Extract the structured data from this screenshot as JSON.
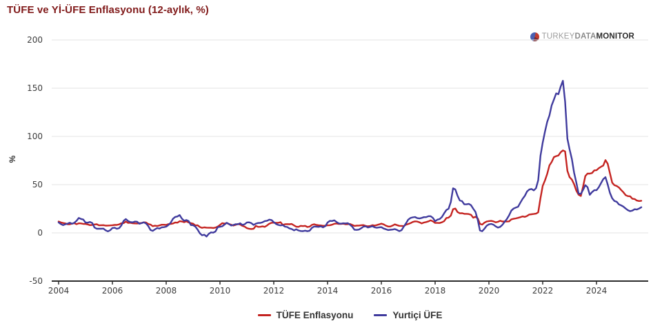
{
  "page": {
    "title": "TÜFE ve Yİ-ÜFE Enflasyonu (12-aylık, %)"
  },
  "logo": {
    "part1": "TURKEY",
    "part2": "DATA",
    "part3": "MONITOR",
    "icon": "pie-globe-icon"
  },
  "colors": {
    "title": "#801919",
    "tufe_line": "#c42320",
    "ufe_line": "#3f3a9d",
    "gridline": "#e3e3e3",
    "axis_line": "#2b2b2b",
    "tick_text": "#3c3c3c",
    "legend_text": "#333333",
    "background": "#ffffff"
  },
  "chart_data": {
    "type": "line",
    "title": "TÜFE ve Yİ-ÜFE Enflasyonu (12-aylık, %)",
    "xlabel": "",
    "ylabel": "%",
    "ylim": [
      -50,
      200
    ],
    "y_ticks": [
      -50,
      0,
      50,
      100,
      150,
      200
    ],
    "x_ticks": [
      2004,
      2006,
      2008,
      2010,
      2012,
      2014,
      2016,
      2018,
      2020,
      2022,
      2024
    ],
    "x_start_year": 2004,
    "frequency": "monthly",
    "grid": true,
    "legend_position": "bottom",
    "series": [
      {
        "name": "TÜFE Enflasyonu",
        "color": "#c42320",
        "values": [
          11.8,
          10.8,
          10.2,
          9.8,
          8.9,
          8.9,
          9.6,
          10.0,
          9.0,
          9.9,
          9.8,
          9.3,
          9.2,
          8.7,
          8.0,
          8.2,
          8.7,
          8.9,
          7.8,
          7.9,
          8.0,
          7.5,
          7.6,
          7.7,
          7.9,
          8.2,
          8.2,
          8.8,
          9.9,
          10.1,
          11.7,
          10.3,
          10.5,
          9.9,
          9.8,
          9.7,
          10.0,
          10.2,
          10.9,
          10.7,
          9.2,
          8.6,
          6.9,
          7.4,
          7.1,
          7.7,
          8.4,
          8.4,
          8.2,
          9.1,
          9.2,
          9.7,
          10.7,
          10.6,
          12.1,
          11.8,
          11.1,
          12.0,
          10.8,
          10.1,
          9.5,
          7.7,
          7.9,
          6.1,
          5.2,
          5.7,
          5.4,
          5.3,
          5.3,
          5.1,
          5.5,
          6.5,
          8.2,
          10.1,
          9.6,
          10.2,
          9.1,
          8.4,
          7.6,
          8.3,
          9.2,
          8.6,
          7.3,
          6.4,
          4.9,
          4.2,
          4.0,
          4.3,
          7.2,
          6.2,
          6.3,
          6.7,
          6.2,
          7.7,
          9.5,
          10.4,
          10.6,
          10.4,
          10.4,
          11.1,
          8.3,
          8.9,
          9.1,
          8.9,
          9.2,
          7.8,
          6.4,
          6.2,
          7.3,
          7.0,
          7.3,
          6.1,
          6.5,
          8.3,
          8.9,
          8.2,
          7.9,
          7.7,
          7.3,
          7.4,
          7.8,
          7.9,
          8.4,
          9.4,
          9.7,
          9.2,
          9.3,
          9.5,
          8.9,
          9.0,
          9.2,
          8.2,
          7.2,
          7.5,
          7.6,
          7.9,
          8.1,
          7.2,
          6.8,
          7.1,
          8.0,
          7.6,
          8.1,
          8.8,
          9.6,
          8.8,
          7.5,
          6.6,
          6.6,
          7.6,
          8.8,
          8.0,
          7.3,
          7.2,
          7.0,
          8.5,
          9.2,
          10.1,
          11.3,
          11.9,
          11.7,
          10.9,
          9.8,
          10.7,
          11.2,
          11.9,
          13.0,
          11.9,
          10.3,
          10.3,
          10.2,
          10.9,
          12.1,
          15.4,
          15.8,
          17.9,
          24.5,
          25.2,
          21.6,
          20.3,
          20.4,
          19.7,
          19.7,
          19.5,
          18.7,
          15.7,
          16.7,
          15.0,
          9.3,
          8.6,
          10.6,
          11.8,
          12.2,
          12.4,
          11.9,
          10.9,
          11.4,
          12.6,
          11.8,
          11.8,
          11.7,
          11.9,
          14.0,
          14.6,
          15.0,
          15.6,
          16.2,
          17.1,
          16.6,
          17.5,
          19.0,
          19.3,
          19.6,
          19.9,
          21.3,
          36.1,
          48.7,
          54.4,
          61.1,
          70.0,
          73.5,
          78.6,
          79.6,
          80.2,
          83.5,
          85.5,
          84.4,
          64.3,
          57.7,
          55.2,
          50.5,
          43.7,
          39.6,
          38.2,
          47.8,
          58.9,
          61.5,
          61.4,
          62.0,
          64.8,
          64.9,
          67.1,
          68.5,
          69.8,
          75.4,
          71.6,
          61.8,
          52.0,
          49.4,
          48.6,
          47.1,
          44.4,
          42.1,
          39.1,
          38.1,
          37.9,
          35.4,
          35.1,
          33.5,
          33.0,
          33.3
        ]
      },
      {
        "name": "Yurtiçi ÜFE",
        "color": "#3f3a9d",
        "values": [
          10.8,
          9.1,
          8.0,
          8.9,
          9.6,
          10.5,
          9.4,
          10.5,
          12.5,
          15.5,
          14.4,
          13.8,
          10.7,
          10.6,
          11.3,
          10.2,
          5.6,
          4.3,
          4.3,
          4.3,
          4.4,
          2.6,
          1.6,
          2.7,
          5.1,
          5.3,
          4.2,
          4.9,
          7.7,
          12.5,
          14.3,
          12.3,
          11.2,
          10.9,
          11.7,
          11.6,
          9.4,
          10.1,
          10.9,
          9.7,
          7.1,
          2.9,
          2.1,
          3.7,
          5.0,
          4.4,
          5.7,
          5.9,
          6.4,
          8.2,
          10.5,
          14.6,
          16.5,
          17.0,
          18.4,
          14.7,
          12.5,
          13.3,
          12.3,
          8.1,
          7.9,
          6.4,
          3.5,
          -0.4,
          -2.5,
          -1.9,
          -3.8,
          -1.0,
          0.5,
          0.2,
          1.5,
          5.9,
          6.3,
          6.8,
          8.6,
          10.4,
          9.2,
          7.6,
          8.2,
          9.0,
          8.9,
          9.9,
          8.2,
          8.9,
          10.8,
          10.9,
          10.1,
          8.2,
          9.6,
          10.2,
          10.3,
          11.0,
          12.2,
          12.6,
          13.7,
          13.3,
          11.1,
          9.2,
          8.2,
          7.7,
          8.1,
          6.4,
          6.1,
          4.6,
          4.0,
          2.6,
          3.7,
          2.5,
          1.9,
          1.8,
          2.3,
          1.7,
          2.2,
          5.2,
          6.6,
          6.4,
          6.2,
          6.8,
          5.7,
          7.0,
          10.7,
          12.4,
          12.3,
          13.0,
          11.3,
          9.8,
          9.5,
          9.9,
          9.8,
          10.1,
          8.4,
          6.4,
          3.3,
          3.1,
          3.4,
          4.8,
          6.5,
          6.7,
          5.6,
          6.2,
          6.9,
          5.7,
          5.3,
          5.7,
          5.9,
          4.5,
          3.8,
          2.9,
          3.2,
          3.4,
          3.9,
          3.0,
          1.8,
          2.8,
          6.4,
          9.9,
          13.7,
          15.4,
          16.1,
          16.4,
          15.3,
          14.9,
          15.5,
          16.3,
          16.3,
          17.3,
          17.3,
          15.5,
          12.1,
          13.7,
          14.3,
          16.4,
          20.2,
          23.7,
          25.0,
          32.1,
          46.2,
          45.0,
          38.5,
          33.6,
          32.9,
          29.6,
          29.6,
          30.1,
          28.7,
          25.0,
          21.7,
          13.5,
          2.5,
          1.7,
          4.3,
          7.4,
          8.8,
          9.3,
          8.5,
          6.7,
          5.5,
          6.2,
          8.3,
          11.5,
          14.3,
          18.2,
          23.1,
          25.2,
          26.2,
          27.1,
          31.2,
          35.2,
          38.3,
          42.9,
          44.9,
          45.5,
          44.0,
          46.3,
          54.6,
          79.9,
          93.5,
          105.0,
          115.0,
          121.8,
          132.2,
          138.3,
          144.6,
          143.8,
          151.5,
          157.7,
          136.0,
          97.7,
          86.5,
          76.6,
          62.4,
          52.1,
          40.8,
          40.4,
          44.5,
          49.4,
          47.4,
          39.4,
          42.2,
          44.2,
          44.2,
          47.3,
          51.5,
          55.7,
          57.7,
          50.1,
          41.4,
          35.8,
          33.1,
          32.2,
          29.5,
          28.5,
          27.2,
          25.2,
          23.5,
          22.5,
          23.1,
          24.5,
          24.2,
          25.2,
          26.6
        ]
      }
    ]
  },
  "legend": {
    "items": [
      {
        "label": "TÜFE Enflasyonu",
        "color": "#c42320"
      },
      {
        "label": "Yurtiçi ÜFE",
        "color": "#3f3a9d"
      }
    ]
  },
  "y_axis_label": "%"
}
